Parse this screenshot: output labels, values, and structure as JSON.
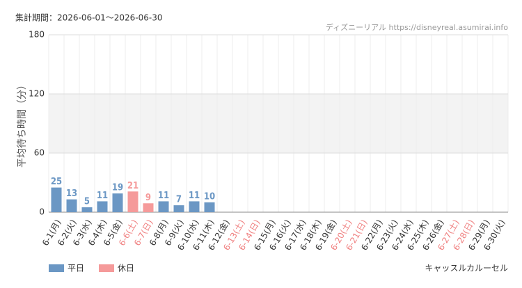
{
  "chart_data": {
    "type": "bar",
    "period": "集計期間：2026-06-01～2026-06-30",
    "source": "ディズニーリアル https://disneyreal.asumirai.info",
    "y_label": "平均待ち時間（分）",
    "attraction": "キャッスルカルーセル",
    "categories": [
      "6-1(月)",
      "6-2(火)",
      "6-3(水)",
      "6-4(木)",
      "6-5(金)",
      "6-6(土)",
      "6-7(日)",
      "6-8(月)",
      "6-9(火)",
      "6-10(水)",
      "6-11(木)",
      "6-12(金)",
      "6-13(土)",
      "6-14(日)",
      "6-15(月)",
      "6-16(火)",
      "6-17(水)",
      "6-18(木)",
      "6-19(金)",
      "6-20(土)",
      "6-21(日)",
      "6-22(月)",
      "6-23(火)",
      "6-24(水)",
      "6-25(木)",
      "6-26(金)",
      "6-27(土)",
      "6-28(日)",
      "6-29(月)",
      "6-30(火)"
    ],
    "category_colors": [
      "#333",
      "#333",
      "#333",
      "#333",
      "#333",
      "#f08080",
      "#f08080",
      "#333",
      "#333",
      "#333",
      "#333",
      "#333",
      "#f08080",
      "#f08080",
      "#333",
      "#333",
      "#333",
      "#333",
      "#333",
      "#f08080",
      "#f08080",
      "#333",
      "#333",
      "#333",
      "#333",
      "#333",
      "#f08080",
      "#f08080",
      "#333",
      "#333"
    ],
    "series": [
      {
        "name": "平日",
        "color": "#6b97c4",
        "values": [
          25,
          13,
          5,
          11,
          19,
          null,
          null,
          11,
          7,
          11,
          10,
          null,
          null,
          null,
          null,
          null,
          null,
          null,
          null,
          null,
          null,
          null,
          null,
          null,
          null,
          null,
          null,
          null,
          null,
          null
        ]
      },
      {
        "name": "休日",
        "color": "#f59a9a",
        "values": [
          null,
          null,
          null,
          null,
          null,
          21,
          9,
          null,
          null,
          null,
          null,
          null,
          null,
          null,
          null,
          null,
          null,
          null,
          null,
          null,
          null,
          null,
          null,
          null,
          null,
          null,
          null,
          null,
          null,
          null
        ]
      }
    ],
    "ylim": [
      0,
      180
    ],
    "yticks": [
      0,
      60,
      120,
      180
    ],
    "shaded_range": [
      60,
      120
    ],
    "grid": true
  }
}
